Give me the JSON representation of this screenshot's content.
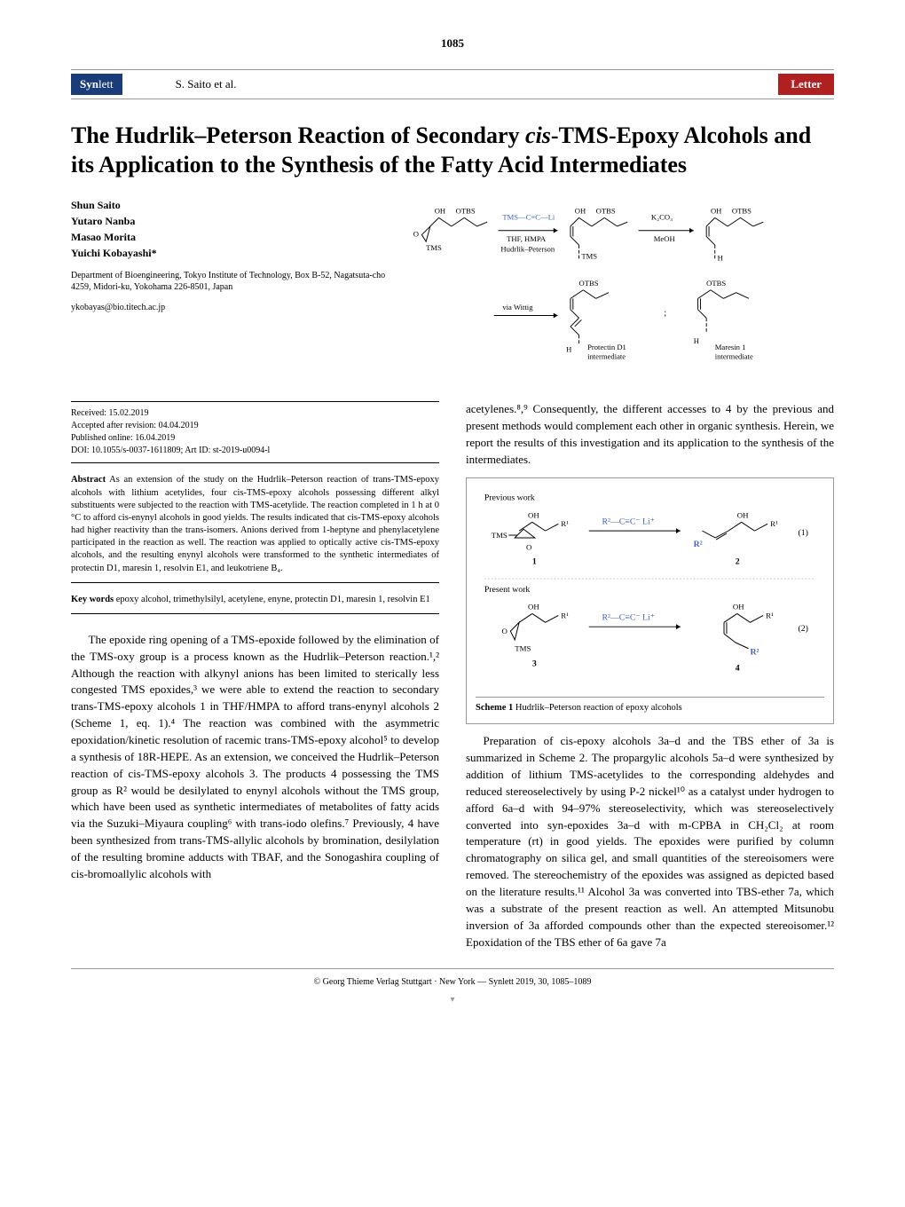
{
  "page_number": "1085",
  "journal_name_part1": "Syn",
  "journal_name_part2": "lett",
  "header_authors": "S. Saito et al.",
  "letter_label": "Letter",
  "title_html": "The Hudrlik–Peterson Reaction of Secondary <span class='cis'>cis</span>-TMS-Epoxy Alcohols and its Application to the Synthesis of the Fatty Acid Intermediates",
  "authors": [
    "Shun Saito",
    "Yutaro Nanba",
    "Masao Morita",
    "Yuichi Kobayashi*"
  ],
  "affiliation": "Department of Bioengineering, Tokyo Institute of Technology, Box B-52, Nagatsuta-cho 4259, Midori-ku, Yokohama 226-8501, Japan",
  "email": "ykobayas@bio.titech.ac.jp",
  "abstract_scheme": {
    "labels": {
      "tms_ccli": "TMS—C≡C—Li",
      "thf_hmpa": "THF, HMPA",
      "hudrlik": "Hudrlik–Peterson",
      "k2co3": "K₂CO₃",
      "meoh": "MeOH",
      "via_wittig": "via Wittig",
      "oh": "OH",
      "otbs": "OTBS",
      "tms": "TMS",
      "h": "H",
      "protectin": "Protectin D1",
      "protectin2": "intermediate",
      "maresin": "Maresin 1",
      "maresin2": "intermediate"
    },
    "colors": {
      "blue": "#4060c0",
      "black": "#000000"
    }
  },
  "meta": {
    "received": "Received: 15.02.2019",
    "accepted": "Accepted after revision: 04.04.2019",
    "published": "Published online: 16.04.2019",
    "doi": "DOI: 10.1055/s-0037-1611809; Art ID: st-2019-u0094-l"
  },
  "abstract_label": "Abstract",
  "abstract_text": " As an extension of the study on the Hudrlik–Peterson reaction of trans-TMS-epoxy alcohols with lithium acetylides, four cis-TMS-epoxy alcohols possessing different alkyl substituents were subjected to the reaction with TMS-acetylide. The reaction completed in 1 h at 0 °C to afford cis-enynyl alcohols in good yields. The results indicated that cis-TMS-epoxy alcohols had higher reactivity than the trans-isomers. Anions derived from 1-heptyne and phenylacetylene participated in the reaction as well. The reaction was applied to optically active cis-TMS-epoxy alcohols, and the resulting enynyl alcohols were transformed to the synthetic intermediates of protectin D1, maresin 1, resolvin E1, and leukotriene B₄.",
  "keywords_label": "Key words",
  "keywords_text": " epoxy alcohol, trimethylsilyl, acetylene, enyne, protectin D1, maresin 1, resolvin E1",
  "body_left": "The epoxide ring opening of a TMS-epoxide followed by the elimination of the TMS-oxy group is a process known as the Hudrlik–Peterson reaction.¹,² Although the reaction with alkynyl anions has been limited to sterically less congested TMS epoxides,³ we were able to extend the reaction to secondary trans-TMS-epoxy alcohols 1 in THF/HMPA to afford trans-enynyl alcohols 2 (Scheme 1, eq. 1).⁴ The reaction was combined with the asymmetric epoxidation/kinetic resolution of racemic trans-TMS-epoxy alcohol⁵ to develop a synthesis of 18R-HEPE. As an extension, we conceived the Hudrlik–Peterson reaction of cis-TMS-epoxy alcohols 3. The products 4 possessing the TMS group as R² would be desilylated to enynyl alcohols without the TMS group, which have been used as synthetic intermediates of metabolites of fatty acids via the Suzuki–Miyaura coupling⁶ with trans-iodo olefins.⁷ Previously, 4 have been synthesized from trans-TMS-allylic alcohols by bromination, desilylation of the resulting bromine adducts with TBAF, and the Sonogashira coupling of cis-bromoallylic alcohols with",
  "body_right_top": "acetylenes.⁸,⁹ Consequently, the different accesses to 4 by the previous and present methods would complement each other in organic synthesis. Herein, we report the results of this investigation and its application to the synthesis of the intermediates.",
  "scheme1": {
    "previous_label": "Previous work",
    "present_label": "Present work",
    "caption_bold": "Scheme 1",
    "caption_text": " Hudrlik–Peterson reaction of epoxy alcohols",
    "labels": {
      "oh": "OH",
      "tms": "TMS",
      "r1": "R¹",
      "r2": "R²",
      "reagent": "R²—C≡C⁻ Li⁺",
      "eq1": "(1)",
      "eq2": "(2)",
      "n1": "1",
      "n2": "2",
      "n3": "3",
      "n4": "4",
      "o": "O"
    },
    "blue": "#4060c0"
  },
  "body_right_bottom": "Preparation of cis-epoxy alcohols 3a–d and the TBS ether of 3a is summarized in Scheme 2. The propargylic alcohols 5a–d were synthesized by addition of lithium TMS-acetylides to the corresponding aldehydes and reduced stereoselectively by using P-2 nickel¹⁰ as a catalyst under hydrogen to afford 6a–d with 94–97% stereoselectivity, which was stereoselectively converted into syn-epoxides 3a–d with m-CPBA in CH₂Cl₂ at room temperature (rt) in good yields. The epoxides were purified by column chromatography on silica gel, and small quantities of the stereoisomers were removed. The stereochemistry of the epoxides was assigned as depicted based on the literature results.¹¹ Alcohol 3a was converted into TBS-ether 7a, which was a substrate of the present reaction as well. An attempted Mitsunobu inversion of 3a afforded compounds other than the expected stereoisomer.¹² Epoxidation of the TBS ether of 6a gave 7a",
  "footer": "© Georg Thieme Verlag  Stuttgart · New York — Synlett 2019, 30, 1085–1089"
}
